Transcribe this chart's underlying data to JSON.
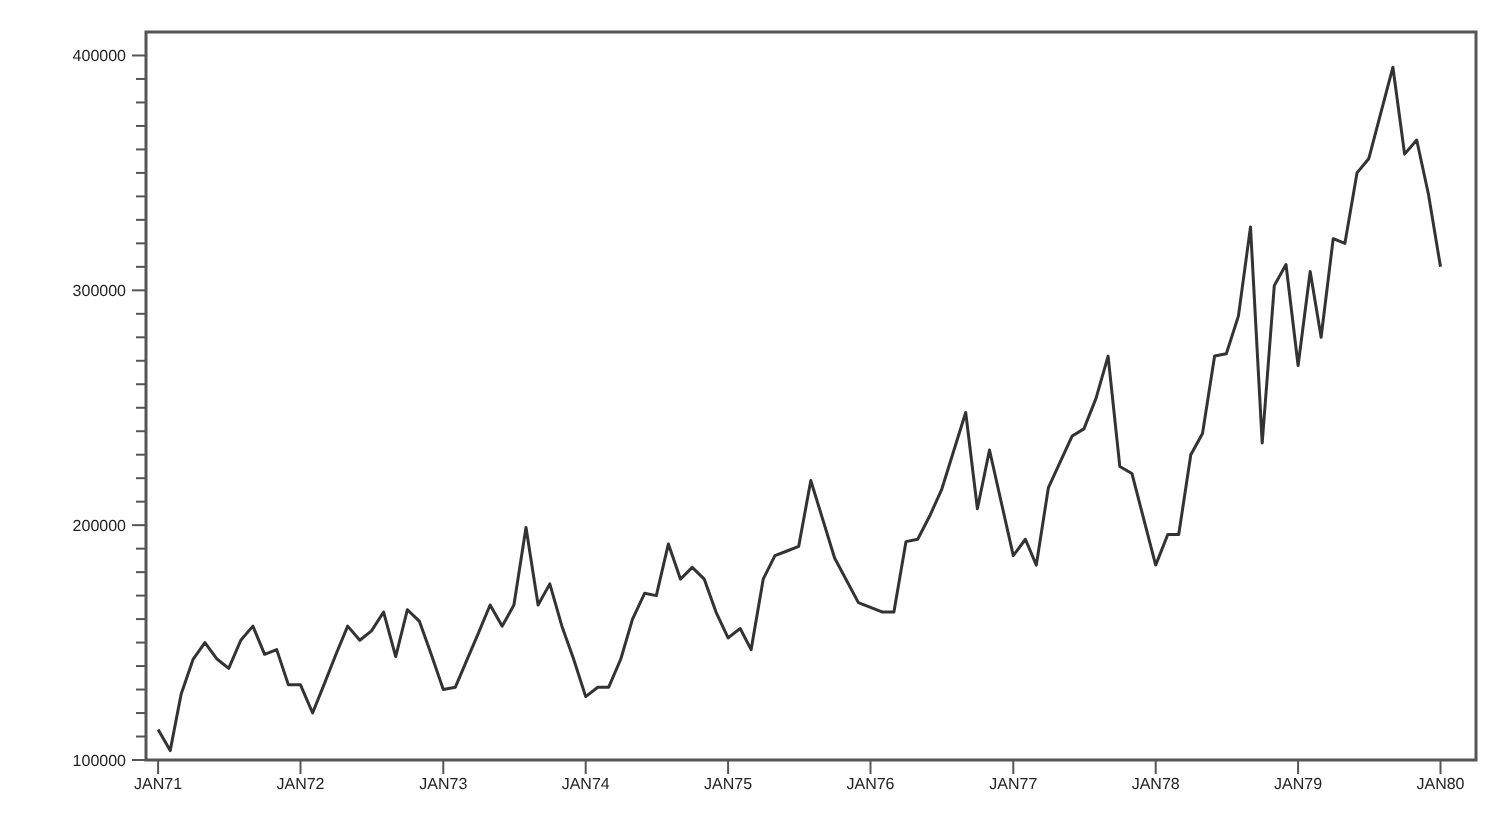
{
  "chart_data": {
    "type": "line",
    "x": [
      "1971-01",
      "1971-02",
      "1971-03",
      "1971-04",
      "1971-05",
      "1971-06",
      "1971-07",
      "1971-08",
      "1971-09",
      "1971-10",
      "1971-11",
      "1971-12",
      "1972-01",
      "1972-02",
      "1972-03",
      "1972-04",
      "1972-05",
      "1972-06",
      "1972-07",
      "1972-08",
      "1972-09",
      "1972-10",
      "1972-11",
      "1972-12",
      "1973-01",
      "1973-02",
      "1973-03",
      "1973-04",
      "1973-05",
      "1973-06",
      "1973-07",
      "1973-08",
      "1973-09",
      "1973-10",
      "1973-11",
      "1973-12",
      "1974-01",
      "1974-02",
      "1974-03",
      "1974-04",
      "1974-05",
      "1974-06",
      "1974-07",
      "1974-08",
      "1974-09",
      "1974-10",
      "1974-11",
      "1974-12",
      "1975-01",
      "1975-02",
      "1975-03",
      "1975-04",
      "1975-05",
      "1975-06",
      "1975-07",
      "1975-08",
      "1975-10",
      "1975-12",
      "1976-02",
      "1976-03",
      "1976-04",
      "1976-05",
      "1976-06",
      "1976-07",
      "1976-09",
      "1976-10",
      "1976-11",
      "1977-01",
      "1977-02",
      "1977-03",
      "1977-04",
      "1977-06",
      "1977-07",
      "1977-08",
      "1977-09",
      "1977-10",
      "1977-11",
      "1978-01",
      "1978-02",
      "1978-03",
      "1978-04",
      "1978-05",
      "1978-06",
      "1978-07",
      "1978-08",
      "1978-09",
      "1978-10",
      "1978-11",
      "1978-12",
      "1979-01",
      "1979-02",
      "1979-03",
      "1979-04",
      "1979-05",
      "1979-06",
      "1979-07",
      "1979-09",
      "1979-10",
      "1979-11",
      "1979-12",
      "1980-01"
    ],
    "series": [
      {
        "color": "#333333",
        "values": [
          113000,
          104000,
          128000,
          143000,
          150000,
          143000,
          139000,
          151000,
          157000,
          145000,
          147000,
          132000,
          132000,
          120000,
          132000,
          145000,
          157000,
          151000,
          155000,
          163000,
          144000,
          164000,
          159000,
          145000,
          130000,
          131000,
          142000,
          154000,
          166000,
          157000,
          166000,
          199000,
          166000,
          175000,
          157000,
          143000,
          127000,
          131000,
          131000,
          143000,
          160000,
          171000,
          170000,
          192000,
          177000,
          182000,
          177000,
          163000,
          152000,
          156000,
          147000,
          177000,
          187000,
          189000,
          191000,
          219000,
          186000,
          167000,
          163000,
          163000,
          193000,
          194000,
          204000,
          215000,
          248000,
          207000,
          232000,
          187000,
          194000,
          183000,
          216000,
          238000,
          241000,
          254000,
          272000,
          225000,
          222000,
          183000,
          196000,
          196000,
          230000,
          239000,
          272000,
          273000,
          289000,
          327000,
          235000,
          302000,
          311000,
          268000,
          308000,
          280000,
          322000,
          320000,
          350000,
          356000,
          395000,
          358000,
          364000,
          341000,
          310000
        ]
      }
    ],
    "xlim": [
      "1970-12",
      "1980-04"
    ],
    "xticks": [
      {
        "value": "1971-01",
        "label": "JAN71"
      },
      {
        "value": "1972-01",
        "label": "JAN72"
      },
      {
        "value": "1973-01",
        "label": "JAN73"
      },
      {
        "value": "1974-01",
        "label": "JAN74"
      },
      {
        "value": "1975-01",
        "label": "JAN75"
      },
      {
        "value": "1976-01",
        "label": "JAN76"
      },
      {
        "value": "1977-01",
        "label": "JAN77"
      },
      {
        "value": "1978-01",
        "label": "JAN78"
      },
      {
        "value": "1979-01",
        "label": "JAN79"
      },
      {
        "value": "1980-01",
        "label": "JAN80"
      }
    ],
    "ylim": [
      100000,
      410000
    ],
    "yticks": [
      100000,
      {
        "value": 110000,
        "label": null
      },
      {
        "value": 120000,
        "label": null
      },
      {
        "value": 130000,
        "label": null
      },
      {
        "value": 140000,
        "label": null
      },
      {
        "value": 150000,
        "label": null
      },
      {
        "value": 160000,
        "label": null
      },
      {
        "value": 170000,
        "label": null
      },
      {
        "value": 180000,
        "label": null
      },
      {
        "value": 190000,
        "label": null
      },
      200000,
      {
        "value": 210000,
        "label": null
      },
      {
        "value": 220000,
        "label": null
      },
      {
        "value": 230000,
        "label": null
      },
      {
        "value": 240000,
        "label": null
      },
      {
        "value": 250000,
        "label": null
      },
      {
        "value": 260000,
        "label": null
      },
      {
        "value": 270000,
        "label": null
      },
      {
        "value": 280000,
        "label": null
      },
      {
        "value": 290000,
        "label": null
      },
      300000,
      {
        "value": 310000,
        "label": null
      },
      {
        "value": 320000,
        "label": null
      },
      {
        "value": 330000,
        "label": null
      },
      {
        "value": 340000,
        "label": null
      },
      {
        "value": 350000,
        "label": null
      },
      {
        "value": 360000,
        "label": null
      },
      {
        "value": 370000,
        "label": null
      },
      {
        "value": 380000,
        "label": null
      },
      {
        "value": 390000,
        "label": null
      },
      400000
    ],
    "grid": false,
    "legend": false,
    "marker": "none",
    "line_style": "solid"
  }
}
